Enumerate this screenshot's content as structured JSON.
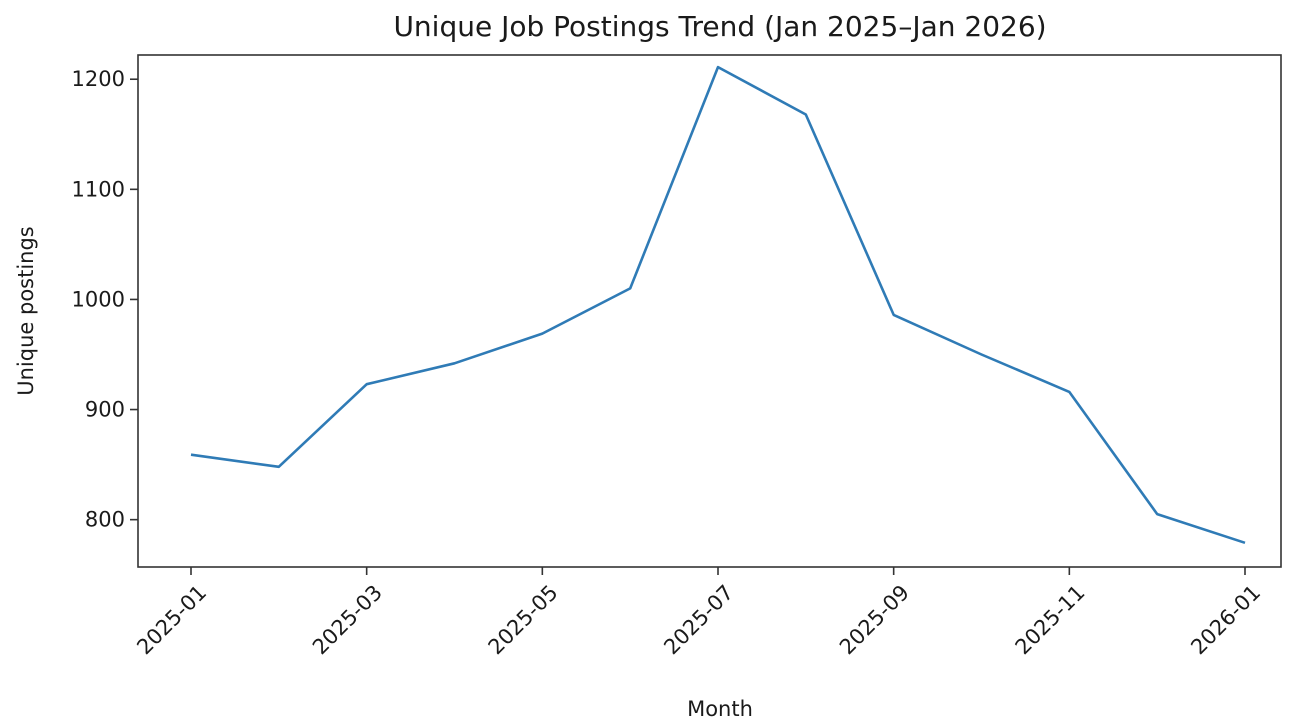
{
  "chart_data": {
    "type": "line",
    "title": "Unique Job Postings Trend (Jan 2025–Jan 2026)",
    "xlabel": "Month",
    "ylabel": "Unique postings",
    "x": [
      "2025-01",
      "2025-02",
      "2025-03",
      "2025-04",
      "2025-05",
      "2025-06",
      "2025-07",
      "2025-08",
      "2025-09",
      "2025-10",
      "2025-11",
      "2025-12",
      "2026-01"
    ],
    "x_tick_labels": [
      "2025-01",
      "2025-03",
      "2025-05",
      "2025-07",
      "2025-09",
      "2025-11",
      "2026-01"
    ],
    "y_ticks": [
      800,
      900,
      1000,
      1100,
      1200
    ],
    "ylim": [
      757,
      1222
    ],
    "grid": false,
    "legend": "none",
    "series": [
      {
        "values": [
          859,
          848,
          923,
          942,
          969,
          1010,
          1211,
          1168,
          986,
          950,
          916,
          805,
          779
        ],
        "color": "#2f7bb6"
      }
    ]
  }
}
